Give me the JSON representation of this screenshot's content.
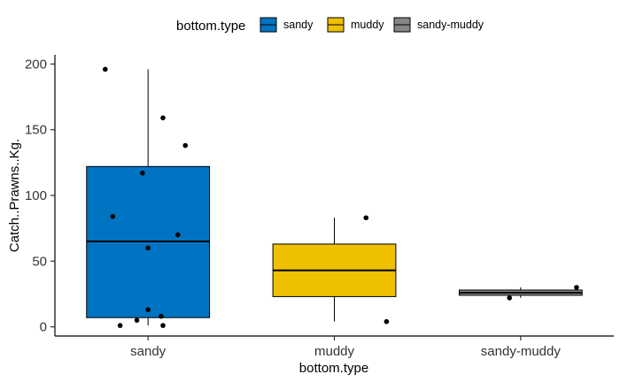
{
  "chart_data": {
    "type": "box",
    "categories": [
      "sandy",
      "muddy",
      "sandy-muddy"
    ],
    "xlabel": "bottom.type",
    "ylabel": "Catch..Prawns..Kg.",
    "ylim": [
      -7,
      207
    ],
    "yticks": [
      0,
      50,
      100,
      150,
      200
    ],
    "grid": false,
    "legend": {
      "title": "bottom.type",
      "placement": "top",
      "entries": [
        "sandy",
        "muddy",
        "sandy-muddy"
      ]
    },
    "colors": [
      "#0073C2",
      "#EFC000",
      "#868686"
    ],
    "series": [
      {
        "name": "sandy",
        "box": {
          "min": 1,
          "q1": 7,
          "median": 65,
          "q3": 122,
          "max": 196
        },
        "points": [
          {
            "x": -0.23,
            "y": 196
          },
          {
            "x": 0.08,
            "y": 159
          },
          {
            "x": 0.2,
            "y": 138
          },
          {
            "x": -0.03,
            "y": 117
          },
          {
            "x": -0.19,
            "y": 84
          },
          {
            "x": 0.16,
            "y": 70
          },
          {
            "x": 0.0,
            "y": 60
          },
          {
            "x": 0.0,
            "y": 13
          },
          {
            "x": 0.07,
            "y": 8
          },
          {
            "x": -0.06,
            "y": 5
          },
          {
            "x": -0.15,
            "y": 1
          },
          {
            "x": 0.08,
            "y": 1
          }
        ]
      },
      {
        "name": "muddy",
        "box": {
          "min": 4,
          "q1": 23,
          "median": 43,
          "q3": 63,
          "max": 83
        },
        "points": [
          {
            "x": 0.17,
            "y": 83
          },
          {
            "x": 0.28,
            "y": 4
          }
        ]
      },
      {
        "name": "sandy-muddy",
        "box": {
          "min": 22,
          "q1": 24,
          "median": 26,
          "q3": 28,
          "max": 30
        },
        "points": [
          {
            "x": 0.3,
            "y": 30
          },
          {
            "x": -0.06,
            "y": 22
          }
        ]
      }
    ]
  }
}
